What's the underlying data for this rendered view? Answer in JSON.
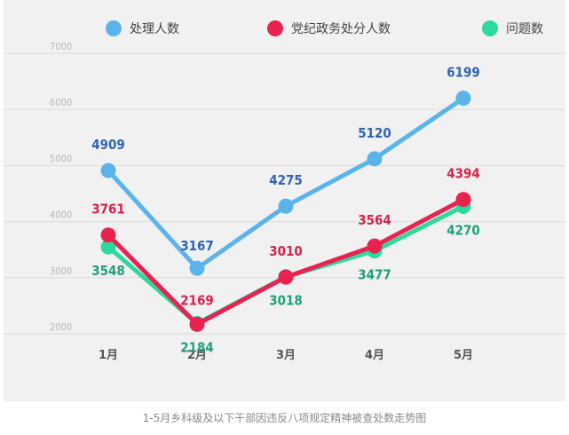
{
  "chart_data": {
    "type": "line",
    "title": "",
    "xlabel": "",
    "ylabel": "",
    "categories": [
      "1月",
      "2月",
      "3月",
      "4月",
      "5月"
    ],
    "ylim": [
      2000,
      7000
    ],
    "yticks": [
      "7000",
      "6000",
      "5000",
      "4000",
      "3000",
      "2000"
    ],
    "grid": true,
    "legend_position": "top",
    "series": [
      {
        "name": "处理人数",
        "color": "#5ab4ea",
        "label_color": "#2f64b4",
        "values": [
          4909,
          3167,
          4275,
          5120,
          6199
        ]
      },
      {
        "name": "党纪政务处分人数",
        "color": "#e8234f",
        "label_color": "#d8224a",
        "values": [
          3761,
          2169,
          3010,
          3564,
          4394
        ]
      },
      {
        "name": "问题数",
        "color": "#2fd89c",
        "label_color": "#1fa07a",
        "values": [
          3548,
          2184,
          3018,
          3477,
          4270
        ]
      }
    ]
  },
  "caption": "1-5月乡科级及以下干部因违反八项规定精神被查处数走势图"
}
